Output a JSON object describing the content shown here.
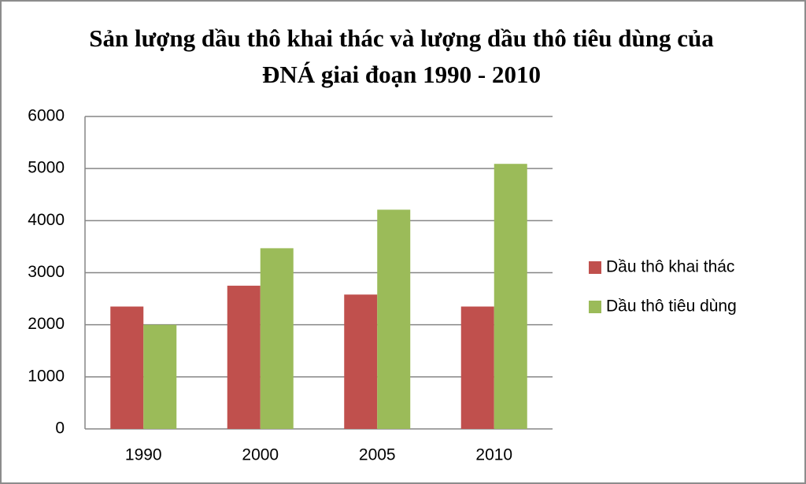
{
  "chart_data": {
    "type": "bar",
    "title": "Sản lượng dầu thô khai thác và lượng dầu thô tiêu dùng của ĐNÁ giai đoạn 1990 - 2010",
    "categories": [
      "1990",
      "2000",
      "2005",
      "2010"
    ],
    "series": [
      {
        "name": "Dầu thô khai thác",
        "color": "#c0504d",
        "values": [
          2350,
          2750,
          2580,
          2350
        ]
      },
      {
        "name": "Dầu thô tiêu dùng",
        "color": "#9bbb59",
        "values": [
          2000,
          3470,
          4210,
          5090
        ]
      }
    ],
    "ylim": [
      0,
      6000
    ],
    "yticks": [
      0,
      1000,
      2000,
      3000,
      4000,
      5000,
      6000
    ],
    "grid": true,
    "legend": "right"
  }
}
